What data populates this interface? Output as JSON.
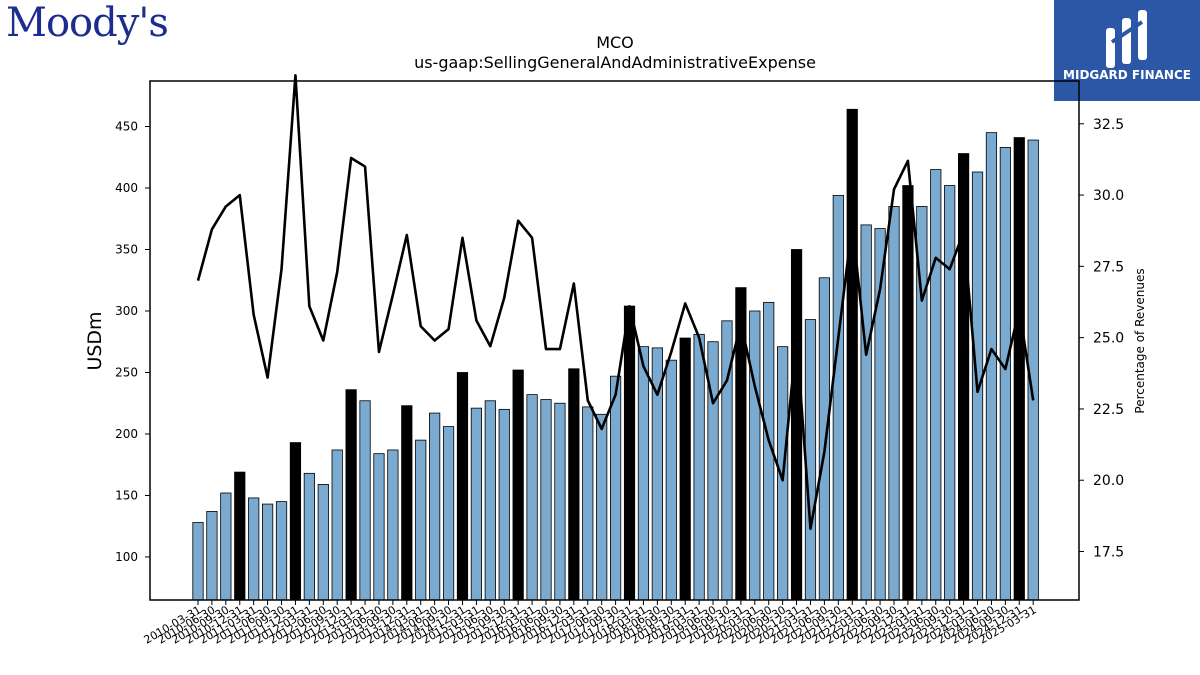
{
  "branding": {
    "left_logo": "Moody's",
    "right_logo": "MIDGARD FINANCE"
  },
  "chart_data": {
    "type": "bar",
    "title": "MCO",
    "subtitle": "us-gaap:SellingGeneralAndAdministrativeExpense",
    "ylabel": "USDm",
    "y2label": "Percentage of Revenues",
    "ylim": [
      65,
      487
    ],
    "y2lim": [
      15.8,
      34.0
    ],
    "yticks": [
      100,
      150,
      200,
      250,
      300,
      350,
      400,
      450
    ],
    "y2ticks": [
      17.5,
      20.0,
      22.5,
      25.0,
      27.5,
      30.0,
      32.5
    ],
    "x_tick_labels": [
      "2010-03-31",
      "2010-06-30",
      "2010-09-30",
      "2010-12-31",
      "2011-03-31",
      "2011-06-30",
      "2011-09-30",
      "2011-12-31",
      "2012-03-31",
      "2012-06-30",
      "2012-09-30",
      "2012-12-31",
      "2013-03-31",
      "2013-06-30",
      "2013-09-30",
      "2013-12-31",
      "2014-03-31",
      "2014-06-30",
      "2014-09-30",
      "2014-12-31",
      "2015-03-31",
      "2015-06-30",
      "2015-09-30",
      "2015-12-31",
      "2016-03-31",
      "2016-06-30",
      "2016-09-30",
      "2016-12-31",
      "2017-03-31",
      "2017-06-30",
      "2017-09-30",
      "2017-12-31",
      "2018-03-31",
      "2018-06-30",
      "2018-09-30",
      "2018-12-31",
      "2019-03-31",
      "2019-06-30",
      "2019-09-30",
      "2019-12-31",
      "2020-03-31",
      "2020-06-30",
      "2020-09-30",
      "2020-12-31",
      "2021-03-31",
      "2021-06-30",
      "2021-09-30",
      "2021-12-31",
      "2022-03-31",
      "2022-06-30",
      "2022-09-30",
      "2022-12-31",
      "2023-03-31",
      "2023-06-30",
      "2023-09-30",
      "2023-12-31",
      "2024-03-31",
      "2024-06-30",
      "2024-09-30",
      "2024-12-31",
      "2025-03-31"
    ],
    "series": [
      {
        "values": [
          128,
          137,
          152,
          169,
          148,
          143,
          145,
          193,
          168,
          159,
          187,
          236,
          227,
          184,
          187,
          223,
          195,
          217,
          206,
          250,
          221,
          227,
          220,
          252,
          232,
          228,
          225,
          253,
          222,
          216,
          247,
          304,
          271,
          270,
          260,
          278,
          281,
          275,
          292,
          319,
          300,
          307,
          271,
          350,
          293,
          327,
          394,
          464,
          370,
          367,
          385,
          402,
          385,
          415,
          402,
          428,
          413,
          445,
          433,
          441,
          439
        ]
      },
      {
        "values": [
          27.0,
          28.8,
          29.6,
          30.0,
          25.8,
          23.6,
          27.4,
          34.2,
          26.1,
          24.9,
          27.3,
          31.3,
          31.0,
          24.5,
          26.5,
          28.6,
          25.4,
          24.9,
          25.3,
          28.5,
          25.6,
          24.7,
          26.4,
          29.1,
          28.5,
          24.6,
          24.6,
          26.9,
          22.8,
          21.8,
          23.0,
          26.1,
          24.0,
          23.0,
          24.5,
          26.2,
          25.0,
          22.7,
          23.5,
          25.5,
          23.3,
          21.4,
          20.0,
          25.0,
          18.3,
          21.0,
          25.0,
          29.0,
          24.4,
          26.7,
          30.2,
          31.2,
          26.3,
          27.8,
          27.4,
          28.7,
          23.1,
          24.6,
          23.9,
          26.0,
          22.8
        ]
      }
    ],
    "year_end_highlight": true,
    "colors": {
      "bar": "#7aaad0",
      "bar_highlight": "#000000",
      "line": "#000000"
    }
  }
}
